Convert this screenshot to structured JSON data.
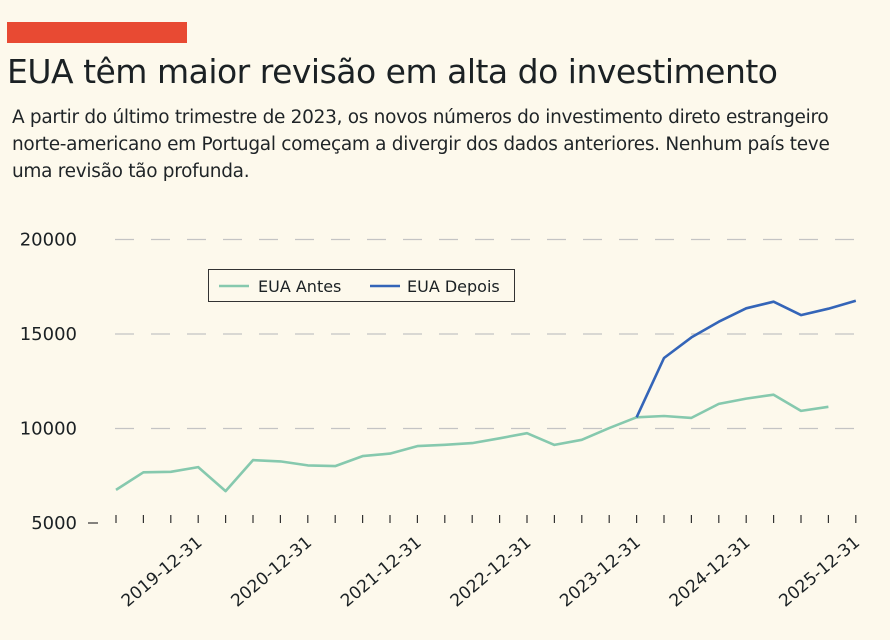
{
  "header": {
    "title": "EUA têm maior revisão em alta do investimento",
    "subtitle": "A partir do último trimestre de 2023, os novos números do investimento direto estrangeiro norte-americano em Portugal começam a divergir dos dados anteriores. Nenhum país teve uma revisão tão profunda.",
    "accent_color": "#e84a33"
  },
  "chart_data": {
    "type": "line",
    "title": "",
    "xlabel": "",
    "ylabel": "",
    "x": [
      "2019-03-31",
      "2019-06-30",
      "2019-09-30",
      "2019-12-31",
      "2020-03-31",
      "2020-06-30",
      "2020-09-30",
      "2020-12-31",
      "2021-03-31",
      "2021-06-30",
      "2021-09-30",
      "2021-12-31",
      "2022-03-31",
      "2022-06-30",
      "2022-09-30",
      "2022-12-31",
      "2023-03-31",
      "2023-06-30",
      "2023-09-30",
      "2023-12-31",
      "2024-03-31",
      "2024-06-30",
      "2024-09-30",
      "2024-12-31",
      "2025-03-31",
      "2025-06-30",
      "2025-09-30",
      "2025-12-31"
    ],
    "x_tick_labels": [
      "2019-12-31",
      "2020-12-31",
      "2021-12-31",
      "2022-12-31",
      "2023-12-31",
      "2024-12-31",
      "2025-12-31"
    ],
    "ylim": [
      5000,
      20000
    ],
    "y_ticks": [
      "5000",
      "10000",
      "15000",
      "20000"
    ],
    "grid": "horizontal dashed",
    "legend_position": "top-left",
    "series": [
      {
        "name": "EUA Antes",
        "color": "#86c9ae",
        "values": [
          6750,
          7680,
          7710,
          7960,
          6690,
          8330,
          8260,
          8050,
          8010,
          8540,
          8670,
          9070,
          9140,
          9230,
          9480,
          9750,
          9130,
          9400,
          10020,
          10590,
          10660,
          10560,
          11300,
          11580,
          11790,
          10930,
          11150,
          null
        ]
      },
      {
        "name": "EUA Depois",
        "color": "#3465b8",
        "values": [
          null,
          null,
          null,
          null,
          null,
          null,
          null,
          null,
          null,
          null,
          null,
          null,
          null,
          null,
          null,
          null,
          null,
          null,
          null,
          10590,
          13730,
          14820,
          15650,
          16360,
          16710,
          16000,
          16340,
          16760
        ]
      }
    ]
  }
}
